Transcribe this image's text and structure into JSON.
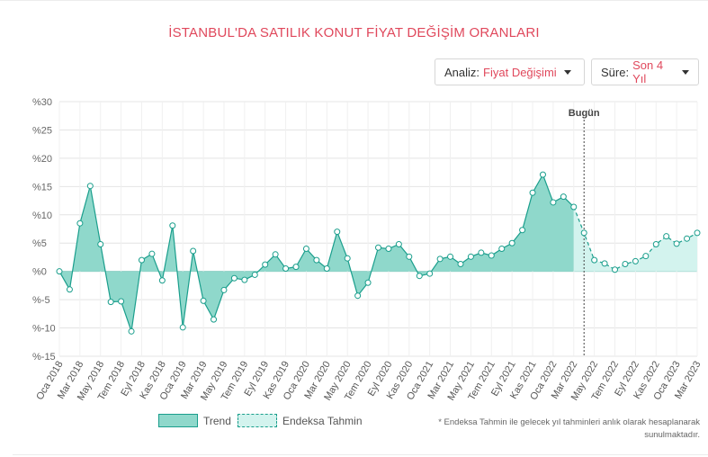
{
  "title": "İSTANBUL'DA SATILIK KONUT FİYAT DEĞİŞİM ORANLARI",
  "controls": {
    "analiz": {
      "label": "Analiz:",
      "value": "Fiyat Değişimi"
    },
    "sure": {
      "label": "Süre:",
      "value": "Son 4 Yıl"
    }
  },
  "legend": {
    "trend": "Trend",
    "tahmin": "Endeksa Tahmin"
  },
  "footnote": {
    "line1": "* Endeksa Tahmin ile gelecek yıl tahminleri anlık olarak hesaplanarak",
    "line2": "sunulmaktadır."
  },
  "colors": {
    "accent": "#e0485c",
    "trend_line": "#1a9e8c",
    "trend_fill": "#8fd8cb",
    "forecast_fill": "#d3f3ee"
  },
  "chart_data": {
    "type": "area",
    "ylim": [
      -15,
      30
    ],
    "yticks": [
      30,
      25,
      20,
      15,
      10,
      5,
      0,
      -5,
      -10,
      -15
    ],
    "ytick_labels": [
      "%30",
      "%25",
      "%20",
      "%15",
      "%10",
      "%5",
      "%0",
      "%-5",
      "%-10",
      "%-15"
    ],
    "grid": true,
    "today_label": "Bugün",
    "today_index": 51,
    "x_labels": [
      "Oca 2018",
      "Mar 2018",
      "May 2018",
      "Tem 2018",
      "Eyl 2018",
      "Kas 2018",
      "Oca 2019",
      "Mar 2019",
      "May 2019",
      "Tem 2019",
      "Eyl 2019",
      "Kas 2019",
      "Oca 2020",
      "Mar 2020",
      "May 2020",
      "Tem 2020",
      "Eyl 2020",
      "Kas 2020",
      "Oca 2021",
      "Mar 2021",
      "May 2021",
      "Tem 2021",
      "Eyl 2021",
      "Kas 2021",
      "Oca 2022",
      "Mar 2022",
      "May 2022",
      "Tem 2022",
      "Eyl 2022",
      "Kas 2022",
      "Oca 2023",
      "Mar 2023"
    ],
    "series": [
      {
        "name": "Trend",
        "values": [
          0,
          -3.2,
          8.5,
          15.1,
          4.8,
          -5.4,
          -5.3,
          -10.6,
          2,
          3.1,
          -1.6,
          8.1,
          -9.9,
          3.6,
          -5.2,
          -8.5,
          -3.3,
          -1.2,
          -1.5,
          -0.6,
          1.2,
          3,
          0.5,
          0.8,
          4,
          2,
          0.5,
          7,
          2.3,
          -4.3,
          -2,
          4.2,
          4,
          4.8,
          2.6,
          -0.8,
          -0.4,
          2.2,
          2.6,
          1.3,
          2.6,
          3.3,
          2.8,
          4,
          5,
          7.3,
          13.9,
          17.1,
          12.2,
          13.2,
          11.4
        ]
      },
      {
        "name": "Endeksa Tahmin",
        "values": [
          11.4,
          6.8,
          2,
          1.4,
          0.3,
          1.3,
          1.8,
          2.7,
          4.8,
          6.2,
          4.9,
          5.8,
          6.8
        ]
      }
    ]
  }
}
